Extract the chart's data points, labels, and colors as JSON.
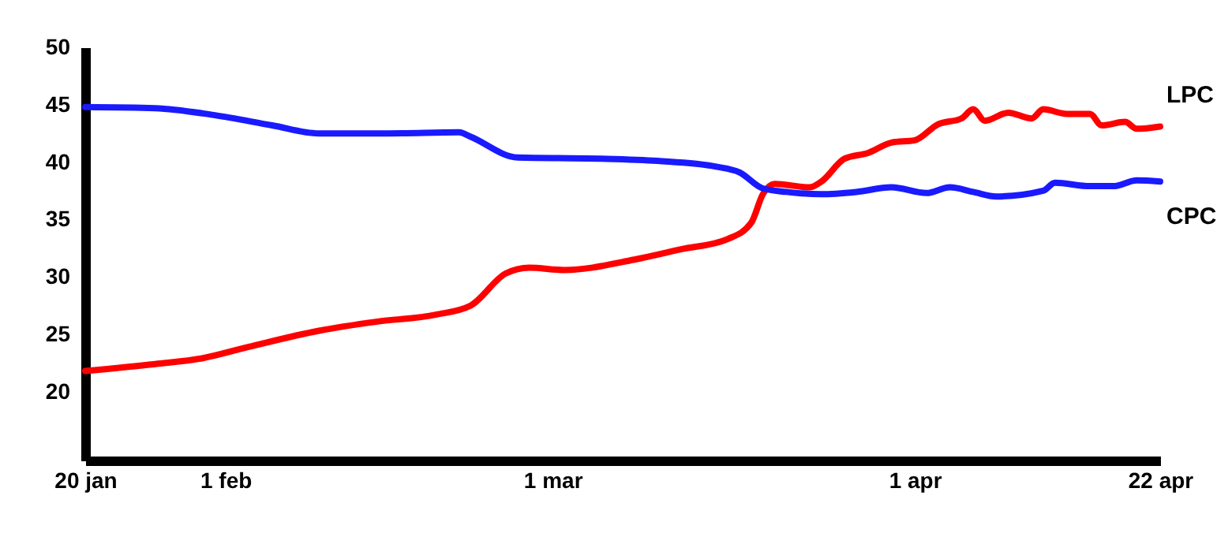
{
  "chart_data": {
    "type": "line",
    "xlim": [
      "--01-20",
      "--04-22"
    ],
    "xticks": [
      {
        "value": "--01-20",
        "label": "20 jan"
      },
      {
        "value": "--02-01",
        "label": "1 feb"
      },
      {
        "value": "--03-01",
        "label": "1 mar"
      },
      {
        "value": "--04-01",
        "label": "1 apr"
      },
      {
        "value": "--04-22",
        "label": "22 apr"
      }
    ],
    "ylim": [
      14,
      50
    ],
    "yticks": [
      20,
      25,
      30,
      35,
      40,
      45,
      50
    ],
    "grid": false,
    "legend": false,
    "marker": "none",
    "line_style": "solid",
    "series": [
      {
        "name": "LPC",
        "color": "#ff0000",
        "x": [
          "--01-20",
          "--01-26",
          "--01-30",
          "--02-03",
          "--02-09",
          "--02-14",
          "--02-19",
          "--02-22",
          "--02-25",
          "--02-27",
          "--03-02",
          "--03-08",
          "--03-12",
          "--03-16",
          "--03-18",
          "--03-19",
          "--03-20",
          "--03-23",
          "--03-24",
          "--03-26",
          "--03-28",
          "--03-30",
          "--04-01",
          "--04-03",
          "--04-05",
          "--04-06",
          "--04-07",
          "--04-09",
          "--04-11",
          "--04-12",
          "--04-14",
          "--04-16",
          "--04-17",
          "--04-19",
          "--04-20",
          "--04-22"
        ],
        "values": [
          21.8,
          22.4,
          22.9,
          23.9,
          25.3,
          26.1,
          26.7,
          27.5,
          30.3,
          30.8,
          30.6,
          31.5,
          32.4,
          33.3,
          34.7,
          37.2,
          38.1,
          37.8,
          38.3,
          40.3,
          40.8,
          41.7,
          41.9,
          43.3,
          43.8,
          44.6,
          43.6,
          44.3,
          43.8,
          44.6,
          44.2,
          44.2,
          43.2,
          43.5,
          42.9,
          43.1
        ]
      },
      {
        "name": "CPC",
        "color": "#1a1aff",
        "x": [
          "--01-20",
          "--01-26",
          "--01-31",
          "--02-05",
          "--02-09",
          "--02-15",
          "--02-21",
          "--02-22",
          "--02-26",
          "--03-05",
          "--03-10",
          "--03-15",
          "--03-17",
          "--03-19",
          "--03-21",
          "--03-24",
          "--03-27",
          "--03-30",
          "--04-02",
          "--04-04",
          "--04-06",
          "--04-08",
          "--04-12",
          "--04-13",
          "--04-16",
          "--04-18",
          "--04-20",
          "--04-22"
        ],
        "values": [
          44.8,
          44.7,
          44.1,
          43.2,
          42.5,
          42.5,
          42.6,
          42.2,
          40.4,
          40.3,
          40.1,
          39.6,
          39.1,
          37.7,
          37.4,
          37.2,
          37.4,
          37.8,
          37.3,
          37.8,
          37.4,
          37.0,
          37.5,
          38.2,
          37.9,
          37.9,
          38.4,
          38.3
        ]
      }
    ]
  }
}
